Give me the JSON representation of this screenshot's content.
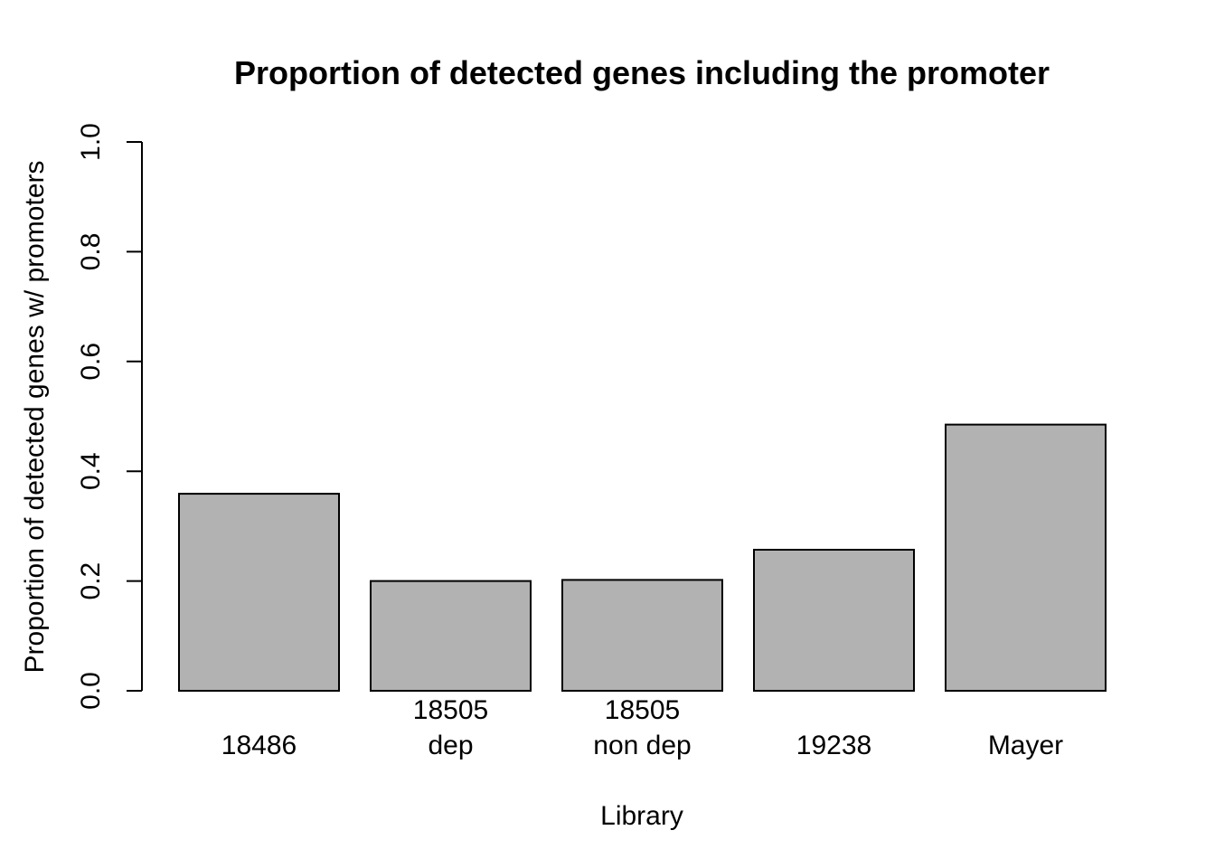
{
  "chart_data": {
    "type": "bar",
    "title": "Proportion of detected genes including the promoter",
    "xlabel": "Library",
    "ylabel": "Proportion of detected genes w/ promoters",
    "categories": [
      [
        "18486"
      ],
      [
        "18505",
        "dep"
      ],
      [
        "18505",
        "non dep"
      ],
      [
        "19238"
      ],
      [
        "Mayer"
      ]
    ],
    "values": [
      0.359,
      0.2,
      0.202,
      0.257,
      0.485
    ],
    "ylim": [
      0,
      1
    ],
    "yticks": [
      "0.0",
      "0.2",
      "0.4",
      "0.6",
      "0.8",
      "1.0"
    ],
    "bar_color": "#b2b2b2",
    "edge_color": "#000000",
    "grid": false,
    "legend": "none"
  }
}
